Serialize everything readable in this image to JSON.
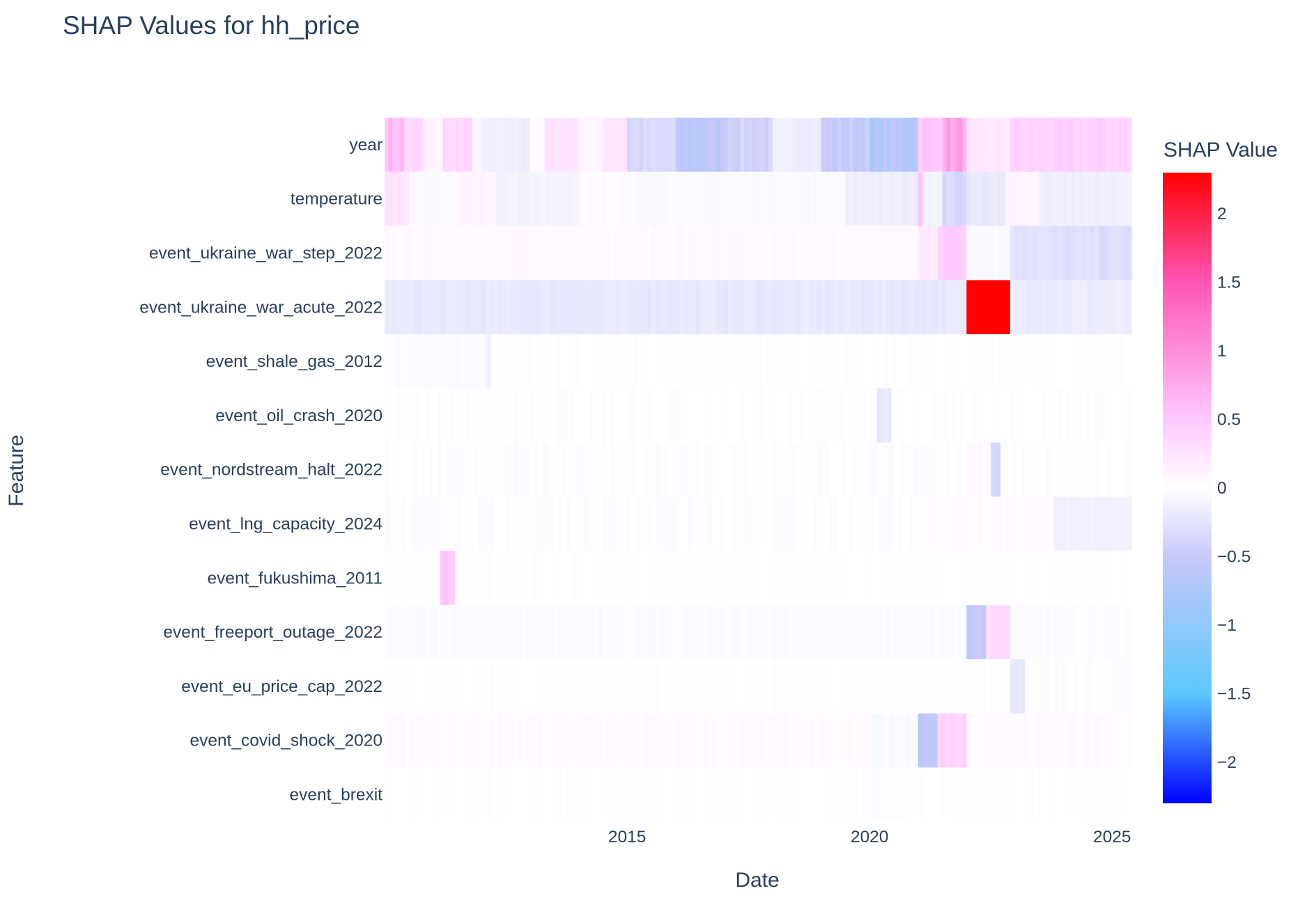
{
  "chart_data": {
    "type": "heatmap",
    "title": "SHAP Values for hh_price",
    "xlabel": "Date",
    "ylabel": "Feature",
    "x_range": [
      2010.0,
      2025.4
    ],
    "x_ticks": [
      "2015",
      "2020",
      "2025"
    ],
    "features": [
      "year",
      "temperature",
      "event_ukraine_war_step_2022",
      "event_ukraine_war_acute_2022",
      "event_shale_gas_2012",
      "event_oil_crash_2020",
      "event_nordstream_halt_2022",
      "event_lng_capacity_2024",
      "event_fukushima_2011",
      "event_freeport_outage_2022",
      "event_eu_price_cap_2022",
      "event_covid_shock_2020",
      "event_brexit"
    ],
    "approx_segments": {
      "year": [
        [
          2010.0,
          2010.4,
          0.6
        ],
        [
          2010.4,
          2010.8,
          0.35
        ],
        [
          2010.8,
          2011.2,
          0.1
        ],
        [
          2011.2,
          2011.8,
          0.35
        ],
        [
          2011.8,
          2012.0,
          0.1
        ],
        [
          2012.0,
          2013.0,
          -0.15
        ],
        [
          2013.0,
          2013.3,
          0.05
        ],
        [
          2013.3,
          2014.0,
          0.25
        ],
        [
          2014.0,
          2014.5,
          0.1
        ],
        [
          2014.5,
          2015.0,
          0.25
        ],
        [
          2015.0,
          2016.0,
          -0.35
        ],
        [
          2016.0,
          2017.0,
          -0.6
        ],
        [
          2017.0,
          2018.0,
          -0.4
        ],
        [
          2018.0,
          2019.0,
          -0.15
        ],
        [
          2019.0,
          2020.0,
          -0.5
        ],
        [
          2020.0,
          2020.2,
          -0.8
        ],
        [
          2020.2,
          2021.0,
          -0.65
        ],
        [
          2021.0,
          2021.5,
          0.5
        ],
        [
          2021.5,
          2022.0,
          0.8
        ],
        [
          2022.0,
          2022.9,
          0.2
        ],
        [
          2022.9,
          2025.4,
          0.4
        ]
      ],
      "temperature": [
        [
          2010.0,
          2010.5,
          0.25
        ],
        [
          2010.5,
          2011.5,
          -0.05
        ],
        [
          2011.5,
          2012.3,
          0.1
        ],
        [
          2012.3,
          2014.0,
          -0.1
        ],
        [
          2014.0,
          2015.0,
          0.05
        ],
        [
          2015.0,
          2019.5,
          -0.05
        ],
        [
          2019.5,
          2021.0,
          -0.15
        ],
        [
          2021.0,
          2021.1,
          0.6
        ],
        [
          2021.1,
          2021.5,
          -0.1
        ],
        [
          2021.5,
          2022.0,
          -0.35
        ],
        [
          2022.0,
          2022.8,
          -0.2
        ],
        [
          2022.8,
          2023.5,
          0.1
        ],
        [
          2023.5,
          2025.4,
          -0.15
        ]
      ],
      "event_ukraine_war_step_2022": [
        [
          2010.0,
          2021.0,
          0.06
        ],
        [
          2021.0,
          2021.4,
          0.2
        ],
        [
          2021.4,
          2022.0,
          0.45
        ],
        [
          2022.0,
          2022.9,
          -0.05
        ],
        [
          2022.9,
          2023.7,
          -0.25
        ],
        [
          2023.7,
          2025.4,
          -0.3
        ]
      ],
      "event_ukraine_war_acute_2022": [
        [
          2010.0,
          2022.0,
          -0.2
        ],
        [
          2022.0,
          2022.9,
          2.3
        ],
        [
          2022.9,
          2025.4,
          -0.17
        ]
      ],
      "event_shale_gas_2012": [
        [
          2010.0,
          2012.1,
          -0.04
        ],
        [
          2012.1,
          2012.2,
          -0.15
        ],
        [
          2012.2,
          2025.4,
          0.0
        ]
      ],
      "event_oil_crash_2020": [
        [
          2010.0,
          2020.15,
          -0.01
        ],
        [
          2020.15,
          2020.45,
          -0.2
        ],
        [
          2020.45,
          2025.4,
          -0.01
        ]
      ],
      "event_nordstream_halt_2022": [
        [
          2010.0,
          2022.0,
          -0.02
        ],
        [
          2022.0,
          2022.5,
          0.05
        ],
        [
          2022.5,
          2022.7,
          -0.35
        ],
        [
          2022.7,
          2025.4,
          -0.02
        ]
      ],
      "event_lng_capacity_2024": [
        [
          2010.0,
          2021.0,
          -0.02
        ],
        [
          2021.0,
          2023.8,
          0.05
        ],
        [
          2023.8,
          2025.4,
          -0.12
        ]
      ],
      "event_fukushima_2011": [
        [
          2010.0,
          2011.15,
          0.0
        ],
        [
          2011.15,
          2011.45,
          0.5
        ],
        [
          2011.45,
          2025.4,
          0.0
        ]
      ],
      "event_freeport_outage_2022": [
        [
          2010.0,
          2022.0,
          -0.04
        ],
        [
          2022.0,
          2022.4,
          -0.55
        ],
        [
          2022.4,
          2022.9,
          0.35
        ],
        [
          2022.9,
          2025.4,
          -0.03
        ]
      ],
      "event_eu_price_cap_2022": [
        [
          2010.0,
          2022.9,
          0.0
        ],
        [
          2022.9,
          2023.2,
          -0.2
        ],
        [
          2023.2,
          2025.4,
          -0.02
        ]
      ],
      "event_covid_shock_2020": [
        [
          2010.0,
          2020.0,
          0.05
        ],
        [
          2020.0,
          2021.0,
          -0.05
        ],
        [
          2021.0,
          2021.4,
          -0.6
        ],
        [
          2021.4,
          2022.0,
          0.4
        ],
        [
          2022.0,
          2025.4,
          0.05
        ]
      ],
      "event_brexit": [
        [
          2010.0,
          2020.0,
          0.0
        ],
        [
          2020.0,
          2020.8,
          -0.03
        ],
        [
          2020.8,
          2025.4,
          0.0
        ]
      ]
    },
    "colorbar": {
      "title": "SHAP Value",
      "range": [
        -2.3,
        2.3
      ],
      "tick_labels": [
        "2",
        "1.5",
        "1",
        "0.5",
        "0",
        "−0.5",
        "−1",
        "−1.5",
        "−2"
      ],
      "tick_values": [
        2,
        1.5,
        1,
        0.5,
        0,
        -0.5,
        -1,
        -1.5,
        -2
      ],
      "colorscale": [
        [
          -2.3,
          "#0000ff"
        ],
        [
          -1.5,
          "#5bc8fd"
        ],
        [
          -0.5,
          "#c8c8fb"
        ],
        [
          0,
          "#ffffff"
        ],
        [
          0.5,
          "#ffc8ff"
        ],
        [
          1.5,
          "#ff55b5"
        ],
        [
          2.3,
          "#ff0000"
        ]
      ]
    }
  }
}
